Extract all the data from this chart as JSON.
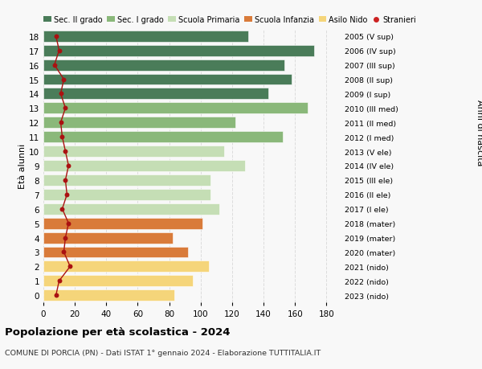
{
  "ages": [
    18,
    17,
    16,
    15,
    14,
    13,
    12,
    11,
    10,
    9,
    8,
    7,
    6,
    5,
    4,
    3,
    2,
    1,
    0
  ],
  "bar_values": [
    130,
    172,
    153,
    158,
    143,
    168,
    122,
    152,
    115,
    128,
    106,
    106,
    112,
    101,
    82,
    92,
    105,
    95,
    83
  ],
  "bar_colors": [
    "#4a7c59",
    "#4a7c59",
    "#4a7c59",
    "#4a7c59",
    "#4a7c59",
    "#8ab87a",
    "#8ab87a",
    "#8ab87a",
    "#c5deb5",
    "#c5deb5",
    "#c5deb5",
    "#c5deb5",
    "#c5deb5",
    "#d97b3a",
    "#d97b3a",
    "#d97b3a",
    "#f5d57a",
    "#f5d57a",
    "#f5d57a"
  ],
  "stranieri_values": [
    8,
    10,
    7,
    13,
    11,
    14,
    11,
    12,
    14,
    16,
    14,
    15,
    12,
    16,
    14,
    13,
    17,
    10,
    8
  ],
  "right_labels": [
    "2005 (V sup)",
    "2006 (IV sup)",
    "2007 (III sup)",
    "2008 (II sup)",
    "2009 (I sup)",
    "2010 (III med)",
    "2011 (II med)",
    "2012 (I med)",
    "2013 (V ele)",
    "2014 (IV ele)",
    "2015 (III ele)",
    "2016 (II ele)",
    "2017 (I ele)",
    "2018 (mater)",
    "2019 (mater)",
    "2020 (mater)",
    "2021 (nido)",
    "2022 (nido)",
    "2023 (nido)"
  ],
  "title": "Popolazione per età scolastica - 2024",
  "subtitle": "COMUNE DI PORCIA (PN) - Dati ISTAT 1° gennaio 2024 - Elaborazione TUTTITALIA.IT",
  "ylabel_left": "Età alunni",
  "ylabel_right": "Anni di nascita",
  "xlim": [
    0,
    190
  ],
  "xticks": [
    0,
    20,
    40,
    60,
    80,
    100,
    120,
    140,
    160,
    180
  ],
  "legend_labels": [
    "Sec. II grado",
    "Sec. I grado",
    "Scuola Primaria",
    "Scuola Infanzia",
    "Asilo Nido",
    "Stranieri"
  ],
  "legend_colors": [
    "#4a7c59",
    "#8ab87a",
    "#c5deb5",
    "#d97b3a",
    "#f5d57a",
    "#cc2222"
  ],
  "bar_height": 0.78,
  "bg_color": "#f8f8f8",
  "grid_color": "#dddddd",
  "stranieri_line_color": "#aa1111",
  "stranieri_dot_color": "#aa1111"
}
